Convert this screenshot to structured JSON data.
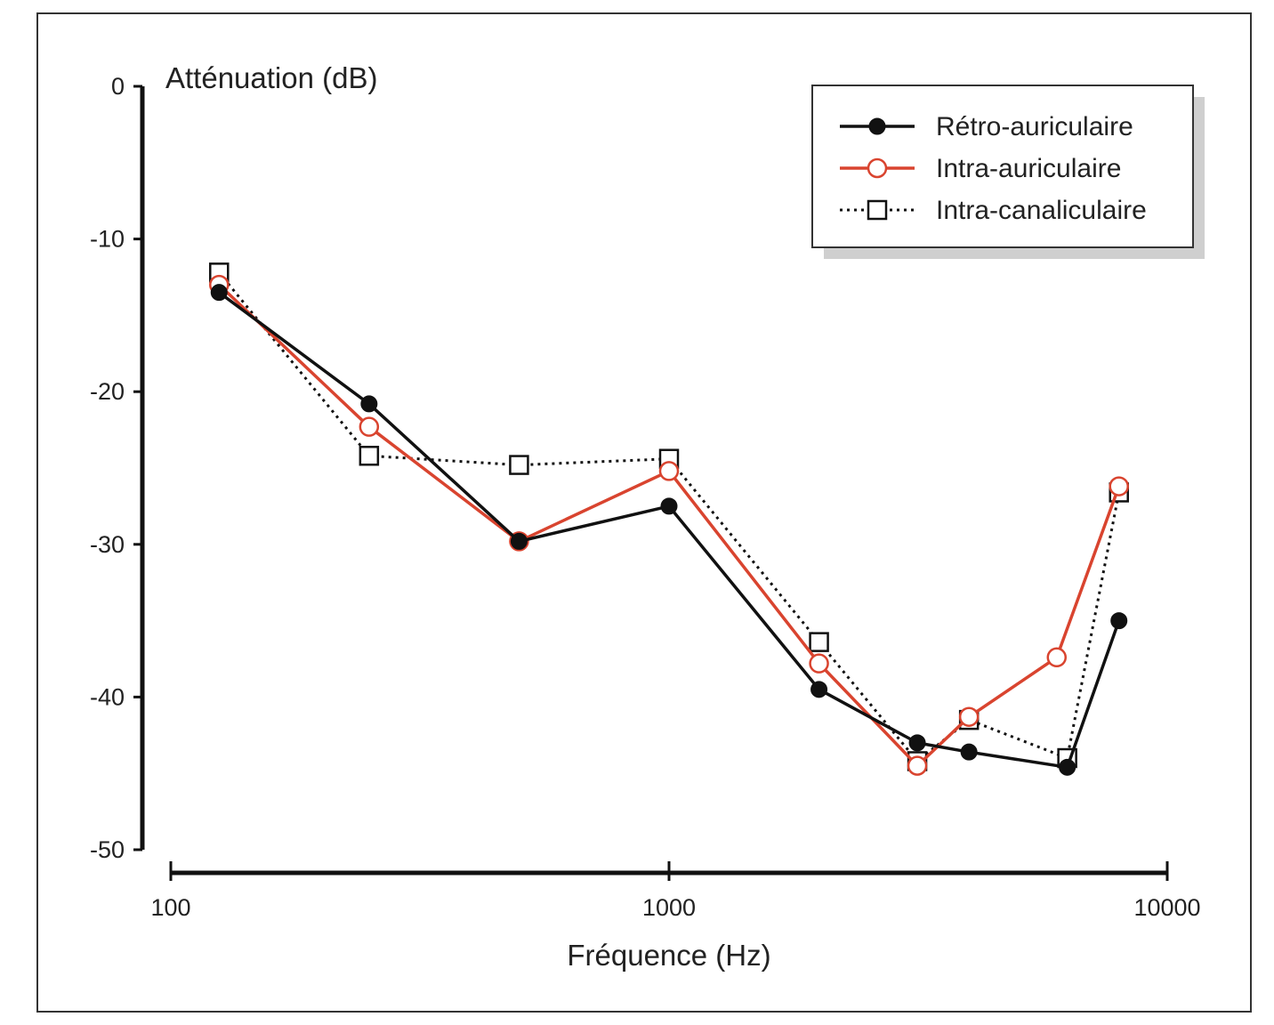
{
  "chart_data": {
    "type": "line",
    "title": "",
    "xlabel": "Fréquence (Hz)",
    "ylabel": "Atténuation (dB)",
    "x_scale": "log",
    "xlim": [
      100,
      10000
    ],
    "ylim": [
      -50,
      0
    ],
    "x_ticks": [
      "100",
      "1000",
      "10000"
    ],
    "y_ticks": [
      "0",
      "-10",
      "-20",
      "-30",
      "-40",
      "-50"
    ],
    "grid": false,
    "legend_position": "top-right",
    "series": [
      {
        "name": "Rétro-auriculaire",
        "color": "#111111",
        "line_style": "solid",
        "marker": "filled-circle",
        "points": [
          [
            125,
            -13.5
          ],
          [
            250,
            -20.8
          ],
          [
            500,
            -29.8
          ],
          [
            1000,
            -27.5
          ],
          [
            2000,
            -39.5
          ],
          [
            3150,
            -43.0
          ],
          [
            4000,
            -43.6
          ],
          [
            6300,
            -44.6
          ],
          [
            8000,
            -35.0
          ]
        ]
      },
      {
        "name": "Intra-auriculaire",
        "color": "#d9442f",
        "line_style": "solid",
        "marker": "open-circle",
        "points": [
          [
            125,
            -13.0
          ],
          [
            250,
            -22.3
          ],
          [
            500,
            -29.8
          ],
          [
            1000,
            -25.2
          ],
          [
            2000,
            -37.8
          ],
          [
            3150,
            -44.5
          ],
          [
            4000,
            -41.3
          ],
          [
            6000,
            -37.4
          ],
          [
            8000,
            -26.2
          ]
        ]
      },
      {
        "name": "Intra-canaliculaire",
        "color": "#111111",
        "line_style": "dotted",
        "marker": "open-square",
        "points": [
          [
            125,
            -12.2
          ],
          [
            250,
            -24.2
          ],
          [
            500,
            -24.8
          ],
          [
            1000,
            -24.4
          ],
          [
            2000,
            -36.4
          ],
          [
            3150,
            -44.2
          ],
          [
            4000,
            -41.5
          ],
          [
            6300,
            -44.0
          ],
          [
            8000,
            -26.6
          ]
        ]
      }
    ]
  }
}
